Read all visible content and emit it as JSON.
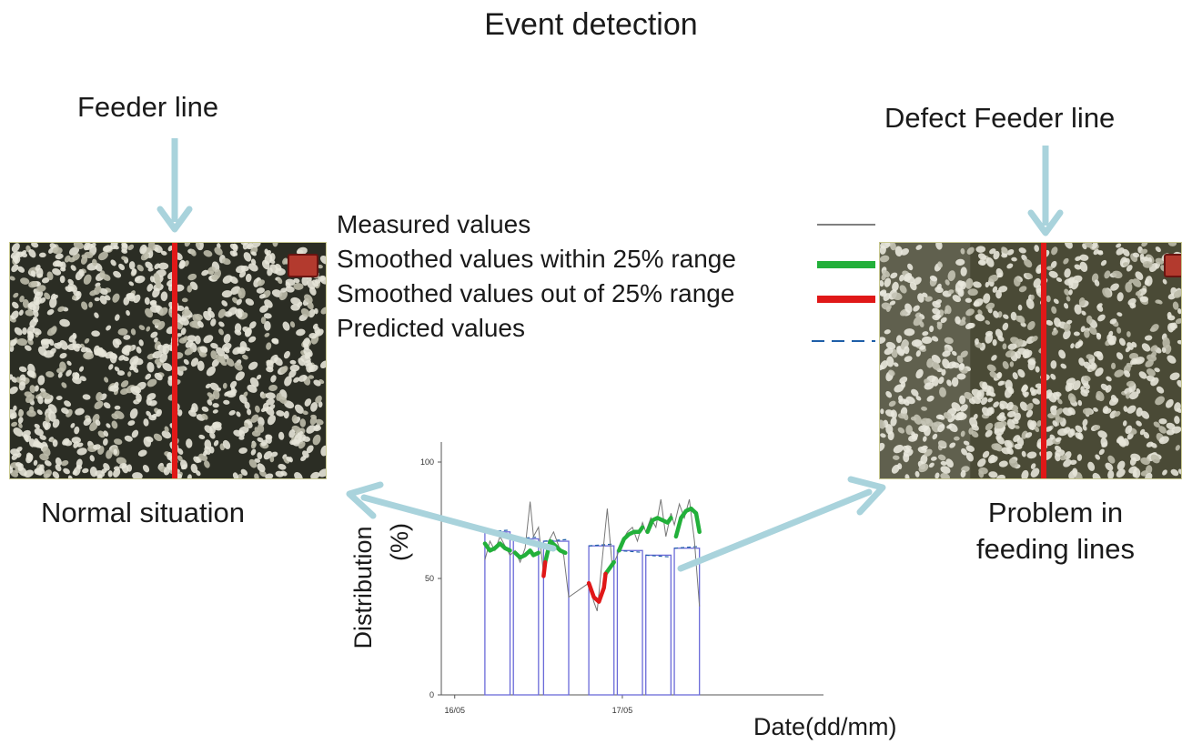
{
  "title": "Event detection",
  "left": {
    "top_label": "Feeder line",
    "bottom_label": "Normal situation"
  },
  "right": {
    "top_label": "Defect Feeder line",
    "bottom_label_line1": "Problem in",
    "bottom_label_line2": "feeding lines"
  },
  "legend": {
    "items": [
      {
        "label": "Measured values",
        "color": "#555555"
      },
      {
        "label": "Smoothed values within 25% range",
        "color": "#22b03a"
      },
      {
        "label": "Smoothed values out of 25% range",
        "color": "#e01818"
      },
      {
        "label": "Predicted values",
        "color": "#1f5fa8"
      }
    ]
  },
  "colors": {
    "arrow": "#a9d3dc",
    "feeder_line": "#e01818",
    "bars": "#6a6ad8"
  },
  "chart_data": {
    "type": "line",
    "ylabel_line1": "Distribution",
    "ylabel_line2": "(%)",
    "xlabel": "Date(dd/mm)",
    "ylim": [
      0,
      100
    ],
    "yticks": [
      "0",
      "50",
      "100"
    ],
    "xticks": [
      {
        "label": "16/05",
        "day": 16.0
      },
      {
        "label": "17/05",
        "day": 17.0
      }
    ],
    "xlim": [
      15.92,
      18.2
    ],
    "grid": false,
    "periods": [
      {
        "start": 16.18,
        "end": 16.33,
        "predicted": 70
      },
      {
        "start": 16.35,
        "end": 16.5,
        "predicted": 67
      },
      {
        "start": 16.53,
        "end": 16.68,
        "predicted": 66
      },
      {
        "start": 16.8,
        "end": 16.95,
        "predicted": 64
      },
      {
        "start": 16.97,
        "end": 17.12,
        "predicted": 62
      },
      {
        "start": 17.14,
        "end": 17.29,
        "predicted": 60
      },
      {
        "start": 17.31,
        "end": 17.46,
        "predicted": 63
      }
    ],
    "series": [
      {
        "name": "Measured values",
        "x": [
          16.18,
          16.21,
          16.24,
          16.27,
          16.3,
          16.33,
          16.36,
          16.39,
          16.42,
          16.45,
          16.47,
          16.5,
          16.53,
          16.56,
          16.59,
          16.62,
          16.65,
          16.68,
          16.8,
          16.83,
          16.85,
          16.88,
          16.91,
          16.94,
          16.97,
          17.0,
          17.03,
          17.06,
          17.09,
          17.12,
          17.14,
          17.17,
          17.2,
          17.23,
          17.26,
          17.29,
          17.31,
          17.34,
          17.37,
          17.4,
          17.43,
          17.46
        ],
        "y": [
          58,
          66,
          62,
          68,
          64,
          60,
          62,
          57,
          63,
          83,
          68,
          72,
          52,
          66,
          70,
          64,
          60,
          42,
          48,
          40,
          36,
          58,
          80,
          55,
          60,
          66,
          70,
          72,
          66,
          74,
          70,
          76,
          72,
          84,
          68,
          78,
          73,
          82,
          76,
          84,
          66,
          38
        ]
      },
      {
        "name": "Smoothed values within 25% range",
        "segments": [
          {
            "x": [
              16.18,
              16.21,
              16.24,
              16.27,
              16.3,
              16.33
            ],
            "y": [
              65,
              62,
              63,
              65,
              63,
              62
            ]
          },
          {
            "x": [
              16.36,
              16.39,
              16.42,
              16.45,
              16.47,
              16.5
            ],
            "y": [
              61,
              59,
              60,
              62,
              60,
              61
            ]
          },
          {
            "x": [
              16.54,
              16.57,
              16.6,
              16.63,
              16.66
            ],
            "y": [
              57,
              66,
              64,
              62,
              61
            ]
          },
          {
            "x": [
              16.9,
              16.93,
              16.95
            ],
            "y": [
              52,
              55,
              57
            ]
          },
          {
            "x": [
              16.98,
              17.01,
              17.04,
              17.07,
              17.1,
              17.12
            ],
            "y": [
              62,
              67,
              69,
              70,
              70,
              72
            ]
          },
          {
            "x": [
              17.15,
              17.18,
              17.21,
              17.24,
              17.27,
              17.29
            ],
            "y": [
              70,
              75,
              76,
              75,
              74,
              76
            ]
          },
          {
            "x": [
              17.32,
              17.35,
              17.38,
              17.41,
              17.44,
              17.46
            ],
            "y": [
              68,
              76,
              79,
              80,
              78,
              70
            ]
          }
        ]
      },
      {
        "name": "Smoothed values out of 25% range",
        "segments": [
          {
            "x": [
              16.53,
              16.54
            ],
            "y": [
              51,
              57
            ]
          },
          {
            "x": [
              16.8,
              16.83,
              16.86,
              16.89,
              16.9
            ],
            "y": [
              48,
              42,
              40,
              46,
              52
            ]
          }
        ]
      },
      {
        "name": "Predicted values",
        "values_from": "periods.predicted"
      }
    ]
  }
}
